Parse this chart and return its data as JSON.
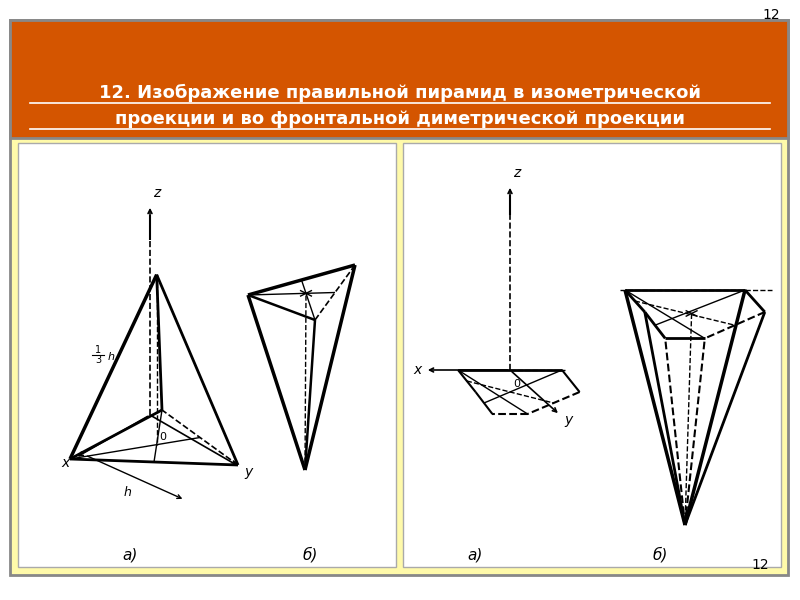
{
  "title_line1": "12. Изображение правильной пирамид в изометрической",
  "title_line2": "проекции и во фронтальной диметрической проекции",
  "title_bg": "#D45500",
  "outer_bg": "#FFFAAA",
  "inner_bg": "#FFFFFF",
  "page_number": "12",
  "label_a": "а)",
  "label_b": "б)"
}
